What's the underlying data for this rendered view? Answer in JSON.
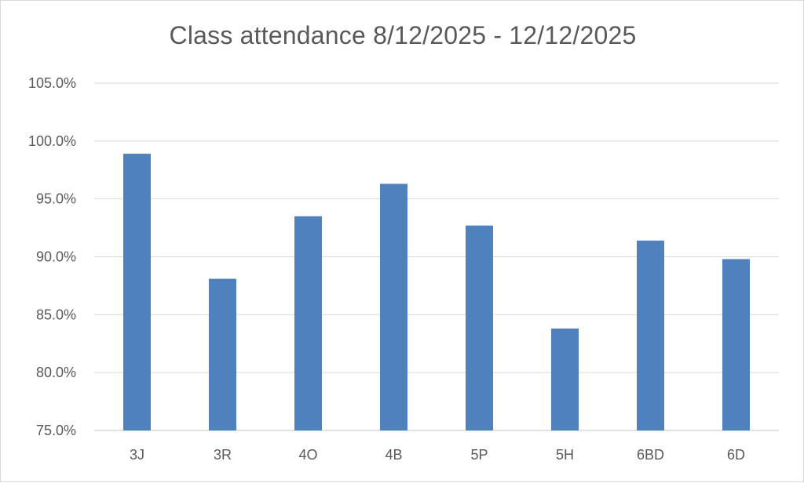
{
  "chart_data": {
    "type": "bar",
    "title": "Class attendance 8/12/2025 - 12/12/2025",
    "xlabel": "",
    "ylabel": "",
    "categories": [
      "3J",
      "3R",
      "4O",
      "4B",
      "5P",
      "5H",
      "6BD",
      "6D"
    ],
    "values": [
      98.9,
      88.1,
      93.5,
      96.3,
      92.7,
      83.8,
      91.4,
      89.8
    ],
    "ylim": [
      75,
      105
    ],
    "yticks": [
      "75.0%",
      "80.0%",
      "85.0%",
      "90.0%",
      "95.0%",
      "100.0%",
      "105.0%"
    ],
    "grid": true,
    "legend": "none",
    "bar_color": "#4f81bd",
    "gridline_color": "#d9d9d9"
  }
}
